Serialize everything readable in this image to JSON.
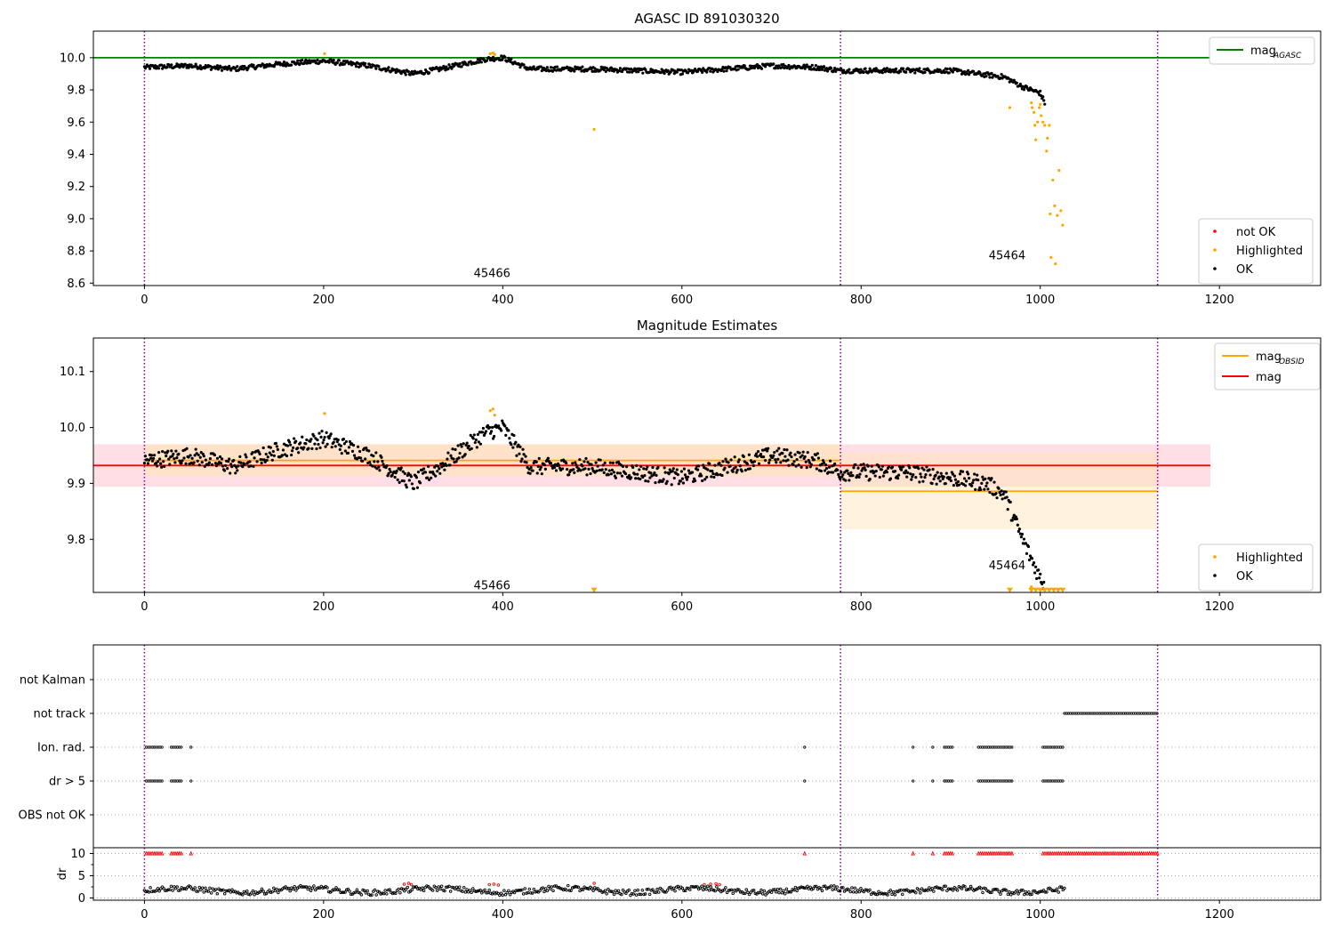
{
  "chart_data": [
    {
      "type": "scatter",
      "title": "AGASC ID 891030320",
      "xlim": [
        -57,
        1313
      ],
      "ylim": [
        8.585,
        10.165
      ],
      "xticks": [
        0,
        200,
        400,
        600,
        800,
        1000,
        1200
      ],
      "yticks": [
        8.6,
        8.8,
        9.0,
        9.2,
        9.4,
        9.6,
        9.8,
        10.0
      ],
      "grid": false,
      "legend_position": "lower-right",
      "vlines": [
        0,
        777,
        1131
      ],
      "hlines": [
        {
          "label": "mag_AGASC",
          "y": 10.0,
          "x_range": [
            -57,
            1190
          ],
          "color": "#008000"
        }
      ],
      "annotations": [
        {
          "text": "45466",
          "x": 388,
          "y": 8.66
        },
        {
          "text": "45464",
          "x": 963,
          "y": 8.77
        }
      ],
      "legend_top": [
        {
          "label_main": "mag",
          "label_sub": "AGASC",
          "kind": "line",
          "color": "#008000"
        }
      ],
      "legend_bottom": [
        {
          "label": "not OK",
          "kind": "dot",
          "color": "#ff0000"
        },
        {
          "label": "Highlighted",
          "kind": "dot",
          "color": "#ffa500"
        },
        {
          "label": "OK",
          "kind": "dot",
          "color": "#000000"
        }
      ],
      "series": [
        {
          "name": "OK",
          "color": "#000000",
          "x_range": [
            0,
            1005
          ],
          "n_points": 1000,
          "y_profile_x": [
            0,
            50,
            100,
            150,
            200,
            250,
            300,
            330,
            380,
            400,
            430,
            500,
            600,
            700,
            750,
            777,
            850,
            900,
            960,
            980,
            1000,
            1005
          ],
          "y_profile_y": [
            9.94,
            9.95,
            9.93,
            9.96,
            9.98,
            9.95,
            9.9,
            9.93,
            9.99,
            10.0,
            9.93,
            9.93,
            9.91,
            9.95,
            9.94,
            9.92,
            9.92,
            9.92,
            9.88,
            9.82,
            9.78,
            9.72
          ],
          "noise": 0.015
        },
        {
          "name": "Highlighted",
          "color": "#ffa500",
          "points": [
            [
              201,
              10.025
            ],
            [
              386,
              10.025
            ],
            [
              389,
              10.03
            ],
            [
              391,
              10.02
            ],
            [
              502,
              9.555
            ],
            [
              966,
              9.69
            ],
            [
              990,
              9.72
            ],
            [
              991,
              9.69
            ],
            [
              993,
              9.66
            ],
            [
              994,
              9.58
            ],
            [
              995,
              9.49
            ],
            [
              997,
              9.6
            ],
            [
              999,
              9.69
            ],
            [
              1000,
              9.71
            ],
            [
              1001,
              9.64
            ],
            [
              1003,
              9.6
            ],
            [
              1005,
              9.58
            ],
            [
              1007,
              9.42
            ],
            [
              1008,
              9.5
            ],
            [
              1010,
              9.58
            ],
            [
              1011,
              9.03
            ],
            [
              1012,
              8.76
            ],
            [
              1014,
              9.24
            ],
            [
              1016,
              9.08
            ],
            [
              1017,
              8.72
            ],
            [
              1019,
              9.02
            ],
            [
              1021,
              9.3
            ],
            [
              1023,
              9.05
            ],
            [
              1025,
              8.96
            ]
          ]
        }
      ]
    },
    {
      "type": "scatter",
      "title": "Magnitude Estimates",
      "xlim": [
        -57,
        1313
      ],
      "ylim": [
        9.705,
        10.16
      ],
      "xticks": [
        0,
        200,
        400,
        600,
        800,
        1000,
        1200
      ],
      "yticks": [
        9.8,
        9.9,
        10.0,
        10.1
      ],
      "grid": false,
      "legend_position": "lower-right",
      "vlines": [
        0,
        777,
        1131
      ],
      "bands": [
        {
          "x_range": [
            -57,
            1190
          ],
          "y_range": [
            9.894,
            9.97
          ],
          "color": "#ffc0cb",
          "opacity": 0.5
        },
        {
          "x_range": [
            0,
            777
          ],
          "y_range": [
            9.913,
            9.97
          ],
          "color": "#ffe4b3",
          "opacity": 0.55
        },
        {
          "x_range": [
            777,
            1131
          ],
          "y_range": [
            9.818,
            9.955
          ],
          "color": "#ffe4b3",
          "opacity": 0.45
        }
      ],
      "hlines": [
        {
          "label": "mag",
          "y": 9.932,
          "x_range": [
            -57,
            1190
          ],
          "color": "#ff0000"
        },
        {
          "label": "mag_OBSID",
          "y": 9.941,
          "x_range": [
            0,
            777
          ],
          "color": "#ffa500"
        },
        {
          "label": "mag_OBSID",
          "y": 9.886,
          "x_range": [
            777,
            1131
          ],
          "color": "#ffa500"
        }
      ],
      "annotations": [
        {
          "text": "45466",
          "x": 388,
          "y": 9.717
        },
        {
          "text": "45464",
          "x": 963,
          "y": 9.753
        }
      ],
      "legend_top": [
        {
          "label_main": "mag",
          "label_sub": "OBSID",
          "kind": "line",
          "color": "#ffa500"
        },
        {
          "label_main": "mag",
          "label_sub": "",
          "kind": "line",
          "color": "#ff0000"
        }
      ],
      "legend_bottom": [
        {
          "label": "Highlighted",
          "kind": "dot",
          "color": "#ffa500"
        },
        {
          "label": "OK",
          "kind": "dot",
          "color": "#000000"
        }
      ],
      "series": [
        {
          "name": "OK",
          "color": "#000000",
          "x_range": [
            0,
            1005
          ],
          "n_points": 1000,
          "y_profile_x": [
            0,
            50,
            100,
            150,
            200,
            250,
            300,
            330,
            380,
            400,
            430,
            500,
            600,
            700,
            750,
            777,
            850,
            900,
            940,
            960,
            980,
            1000,
            1005
          ],
          "y_profile_y": [
            9.94,
            9.95,
            9.93,
            9.96,
            9.98,
            9.95,
            9.9,
            9.93,
            9.99,
            10.0,
            9.93,
            9.93,
            9.91,
            9.95,
            9.94,
            9.92,
            9.92,
            9.91,
            9.9,
            9.88,
            9.8,
            9.73,
            9.72
          ],
          "noise": 0.015
        },
        {
          "name": "Highlighted",
          "color": "#ffa500",
          "points": [
            [
              201,
              10.025
            ],
            [
              386,
              10.03
            ],
            [
              389,
              10.033
            ],
            [
              391,
              10.022
            ],
            [
              990,
              9.715
            ]
          ]
        },
        {
          "name": "Highlighted (off-scale)",
          "color": "#ffa500",
          "marker": "triangle-down",
          "points": [
            [
              502,
              9.707
            ],
            [
              966,
              9.707
            ],
            [
              990,
              9.707
            ],
            [
              995,
              9.707
            ],
            [
              1000,
              9.707
            ],
            [
              1005,
              9.707
            ],
            [
              1010,
              9.707
            ],
            [
              1015,
              9.707
            ],
            [
              1020,
              9.707
            ],
            [
              1025,
              9.707
            ]
          ]
        }
      ]
    },
    {
      "type": "scatter",
      "title": "",
      "xlim": [
        -57,
        1313
      ],
      "ylim": [
        0,
        6
      ],
      "xticks": [
        0,
        200,
        400,
        600,
        800,
        1000,
        1200
      ],
      "grid": true,
      "vlines": [
        0,
        777,
        1131
      ],
      "category_rows": [
        "not Kalman",
        "not track",
        "Ion. rad.",
        "dr > 5",
        "OBS not OK"
      ],
      "flags": {
        "not Kalman": [],
        "not track": [
          [
            1027,
            1131
          ]
        ],
        "Ion. rad.": [
          [
            2,
            20
          ],
          [
            30,
            42
          ],
          [
            52,
            53
          ],
          [
            737,
            738
          ],
          [
            858,
            860
          ],
          [
            880,
            882
          ],
          [
            893,
            903
          ],
          [
            931,
            970
          ],
          [
            1003,
            1027
          ]
        ],
        "dr > 5": [
          [
            2,
            20
          ],
          [
            30,
            42
          ],
          [
            52,
            53
          ],
          [
            737,
            738
          ],
          [
            858,
            860
          ],
          [
            880,
            882
          ],
          [
            893,
            903
          ],
          [
            931,
            970
          ],
          [
            1003,
            1027
          ]
        ],
        "OBS not OK": []
      }
    },
    {
      "type": "scatter",
      "title": "",
      "xlim": [
        -57,
        1313
      ],
      "ylim": [
        -0.5,
        11.3
      ],
      "xticks": [
        0,
        200,
        400,
        600,
        800,
        1000,
        1200
      ],
      "yticks": [
        0,
        5,
        10
      ],
      "ylabel": "dr",
      "grid": true,
      "series": [
        {
          "name": "dr",
          "color": "#000000",
          "x_range": [
            0,
            1027
          ],
          "n_points": 620,
          "y_mean": 1.7,
          "noise": 0.6
        },
        {
          "name": "dr clipped (red)",
          "color": "#ff0000",
          "marker": "triangle-up",
          "y": 10,
          "x_ranges": [
            [
              2,
              20
            ],
            [
              30,
              42
            ],
            [
              52,
              53
            ],
            [
              737,
              738
            ],
            [
              858,
              860
            ],
            [
              880,
              882
            ],
            [
              893,
              903
            ],
            [
              931,
              970
            ],
            [
              1003,
              1131
            ]
          ]
        },
        {
          "name": "dr high (red)",
          "color": "#ff0000",
          "points": [
            [
              290,
              3.1
            ],
            [
              295,
              3.3
            ],
            [
              298,
              3.0
            ],
            [
              385,
              3.0
            ],
            [
              390,
              3.1
            ],
            [
              395,
              2.9
            ],
            [
              502,
              3.3
            ],
            [
              625,
              3.0
            ],
            [
              632,
              3.1
            ],
            [
              638,
              3.2
            ],
            [
              642,
              3.0
            ]
          ]
        }
      ]
    }
  ]
}
